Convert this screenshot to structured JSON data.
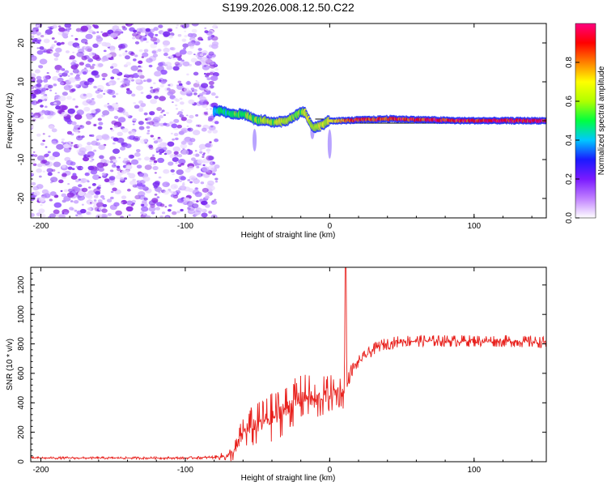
{
  "title": "S199.2026.008.12.50.C22",
  "chart_data": [
    {
      "type": "heatmap",
      "name": "spectrogram",
      "xlabel": "Height of straight line (km)",
      "ylabel": "Frequency (Hz)",
      "xlim": [
        -207,
        150
      ],
      "ylim": [
        -25,
        25
      ],
      "x_ticks": [
        -200,
        -100,
        0,
        100
      ],
      "x_tick_labels": [
        "-200",
        "-100",
        "0",
        "100"
      ],
      "y_ticks": [
        -20,
        -10,
        0,
        10,
        20
      ],
      "y_tick_labels": [
        "-20",
        "-10",
        "0",
        "10",
        "20"
      ],
      "noise_region_x": [
        -207,
        -78
      ],
      "signal_region_x": [
        -80,
        150
      ],
      "ridge": {
        "x": [
          -80,
          -75,
          -70,
          -65,
          -60,
          -55,
          -50,
          -45,
          -40,
          -35,
          -30,
          -25,
          -20,
          -17,
          -15,
          -12,
          -10,
          -5,
          0,
          5,
          10,
          20,
          30,
          40,
          50,
          60,
          70,
          80,
          90,
          100,
          110,
          120,
          130,
          140,
          150
        ],
        "freq": [
          2.5,
          2.5,
          2.0,
          1.5,
          1.8,
          1.0,
          0.0,
          0.0,
          -0.5,
          -0.2,
          0.0,
          1.0,
          2.2,
          2.2,
          0.5,
          -1.5,
          -1.8,
          -1.0,
          0.0,
          0.0,
          0.0,
          0.2,
          0.3,
          0.5,
          0.4,
          0.3,
          0.2,
          0.1,
          0.0,
          0.0,
          0.0,
          0.0,
          0.0,
          0.0,
          0.0
        ],
        "amplitude": [
          0.3,
          0.4,
          0.35,
          0.45,
          0.4,
          0.5,
          0.45,
          0.55,
          0.5,
          0.6,
          0.55,
          0.5,
          0.5,
          0.55,
          0.6,
          0.55,
          0.5,
          0.6,
          0.65,
          0.7,
          0.8,
          0.9,
          0.85,
          0.9,
          0.9,
          0.88,
          0.92,
          0.9,
          0.92,
          0.9,
          0.95,
          0.92,
          0.95,
          0.93,
          0.95
        ]
      },
      "colorbar": {
        "label": "Normalized spectral amplitude",
        "range": [
          0,
          1
        ],
        "ticks": [
          0,
          0.2,
          0.4,
          0.6,
          0.8
        ],
        "tick_labels": [
          "0.0",
          "0.2",
          "0.4",
          "0.6",
          "0.8"
        ]
      },
      "colors": {
        "noise": "#8a2be2",
        "ridge_low": "#1a1aff",
        "ridge_mid": "#00e07a",
        "ridge_high": "#ff1a1a",
        "colormap": [
          "#ffffff",
          "#c080ff",
          "#7a1aff",
          "#1a1aff",
          "#00c8ff",
          "#00ff40",
          "#b0ff00",
          "#ffff00",
          "#ff8000",
          "#ff0000",
          "#ff0080"
        ]
      }
    },
    {
      "type": "line",
      "name": "snr",
      "xlabel": "Height of straight line (km)",
      "ylabel": "SNR (10 * v/v)",
      "xlim": [
        -207,
        150
      ],
      "ylim": [
        0,
        1320
      ],
      "x_ticks": [
        -200,
        -100,
        0,
        100
      ],
      "x_tick_labels": [
        "-200",
        "-100",
        "0",
        "100"
      ],
      "y_ticks": [
        0,
        200,
        400,
        600,
        800,
        1000,
        1200
      ],
      "y_tick_labels": [
        "0",
        "200",
        "400",
        "600",
        "800",
        "1000",
        "1200"
      ],
      "x": [
        -207,
        -150,
        -100,
        -80,
        -70,
        -65,
        -60,
        -55,
        -50,
        -45,
        -40,
        -35,
        -30,
        -25,
        -20,
        -15,
        -10,
        -5,
        0,
        5,
        8,
        10,
        11,
        12,
        13,
        15,
        20,
        25,
        30,
        35,
        40,
        50,
        60,
        80,
        100,
        120,
        150
      ],
      "y": [
        25,
        25,
        25,
        30,
        40,
        80,
        200,
        230,
        250,
        280,
        300,
        330,
        360,
        400,
        430,
        450,
        400,
        440,
        460,
        470,
        480,
        450,
        1320,
        500,
        560,
        620,
        680,
        720,
        760,
        790,
        800,
        820,
        820,
        820,
        820,
        820,
        810
      ],
      "noise_amplitude": [
        8,
        8,
        8,
        10,
        40,
        80,
        120,
        140,
        150,
        160,
        170,
        170,
        170,
        160,
        160,
        150,
        150,
        140,
        130,
        120,
        110,
        100,
        0,
        60,
        50,
        45,
        40,
        40,
        40,
        40,
        40,
        40,
        40,
        40,
        40,
        40,
        40
      ],
      "line_color": "#e8201c"
    }
  ]
}
